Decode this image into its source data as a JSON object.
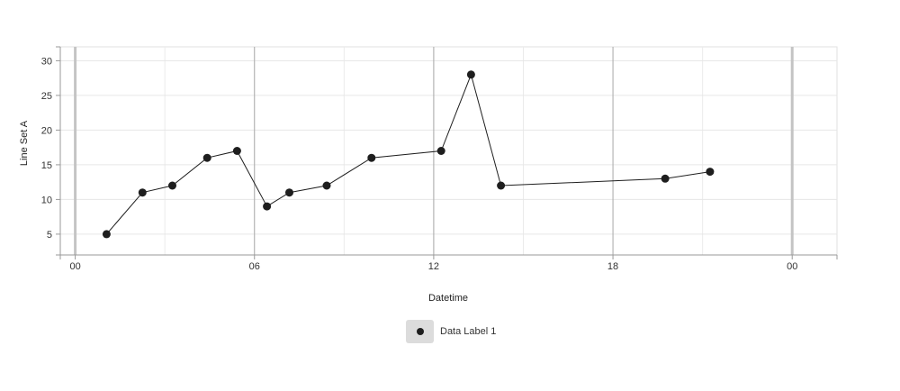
{
  "chart_data": {
    "type": "line",
    "xlabel": "Datetime",
    "ylabel": "Line Set A",
    "xlim": [
      "-0.5h",
      "25.5h"
    ],
    "ylim": [
      2,
      32
    ],
    "x_ticks": [
      "00",
      "06",
      "12",
      "18",
      "00"
    ],
    "y_ticks": [
      5,
      10,
      15,
      20,
      25,
      30
    ],
    "grid": true,
    "legend": "bottom-center",
    "series": [
      {
        "name": "Data Label 1",
        "color": "#1e1e1e",
        "x": [
          "01:03",
          "02:15",
          "03:15",
          "04:25",
          "05:25",
          "06:25",
          "07:10",
          "08:25",
          "09:55",
          "12:15",
          "13:15",
          "14:15",
          "19:45",
          "21:15"
        ],
        "y": [
          5,
          11,
          12,
          16,
          17,
          9,
          11,
          12,
          16,
          17,
          28,
          12,
          13,
          14
        ]
      }
    ]
  }
}
